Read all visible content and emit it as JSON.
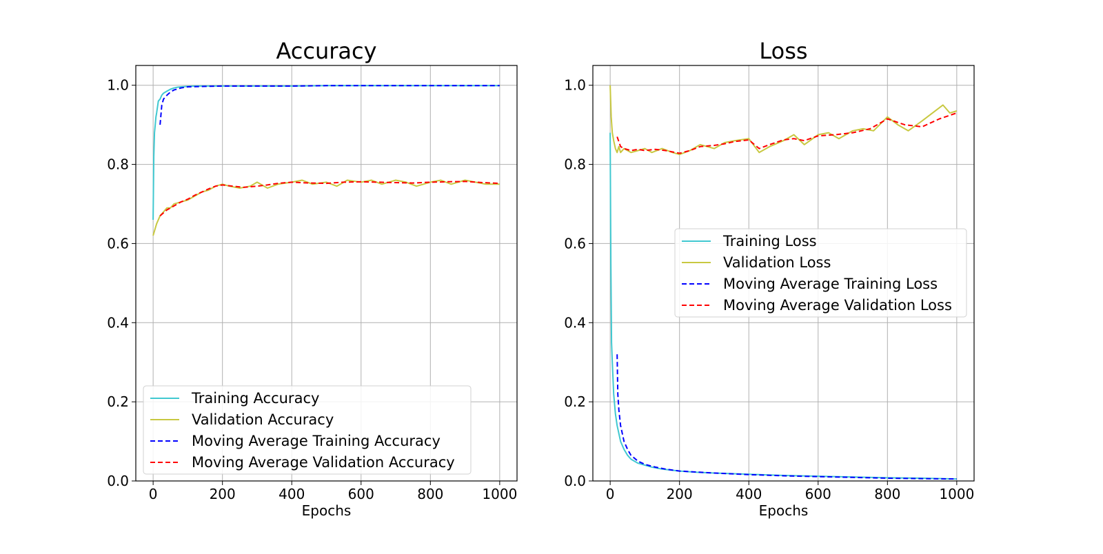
{
  "colors": {
    "training": "#40C8D0",
    "validation": "#C8C840",
    "ma_training": "#0000FF",
    "ma_validation": "#FF0000",
    "grid": "#B0B0B0",
    "legend_border": "#D0D0D0"
  },
  "chart_data": [
    {
      "type": "line",
      "title": "Accuracy",
      "xlabel": "Epochs",
      "ylabel": "",
      "xlim": [
        -50,
        1050
      ],
      "ylim": [
        0.0,
        1.05
      ],
      "xticks": [
        0,
        200,
        400,
        600,
        800,
        1000
      ],
      "xtick_labels": [
        "0",
        "200",
        "400",
        "600",
        "800",
        "1000"
      ],
      "yticks": [
        0.0,
        0.2,
        0.4,
        0.6,
        0.8,
        1.0
      ],
      "ytick_labels": [
        "0.0",
        "0.2",
        "0.4",
        "0.6",
        "0.8",
        "1.0"
      ],
      "grid": true,
      "legend_position": "lower-left",
      "series": [
        {
          "name": "Training Accuracy",
          "style": "solid",
          "color_key": "training",
          "x": [
            0,
            2,
            4,
            6,
            8,
            10,
            15,
            20,
            25,
            30,
            40,
            50,
            60,
            70,
            80,
            100,
            120,
            150,
            180,
            200,
            250,
            300,
            400,
            500,
            600,
            700,
            800,
            900,
            1000
          ],
          "values": [
            0.66,
            0.82,
            0.88,
            0.9,
            0.92,
            0.93,
            0.96,
            0.965,
            0.975,
            0.98,
            0.985,
            0.99,
            0.993,
            0.995,
            0.996,
            0.997,
            0.998,
            0.998,
            0.998,
            0.998,
            0.998,
            0.998,
            0.998,
            0.999,
            0.999,
            0.999,
            0.999,
            0.999,
            0.999
          ]
        },
        {
          "name": "Validation Accuracy",
          "style": "solid",
          "color_key": "validation",
          "x": [
            0,
            10,
            20,
            30,
            40,
            50,
            60,
            80,
            100,
            120,
            140,
            160,
            180,
            200,
            220,
            250,
            280,
            300,
            330,
            360,
            400,
            430,
            460,
            500,
            530,
            560,
            600,
            630,
            660,
            700,
            730,
            760,
            800,
            830,
            860,
            900,
            930,
            960,
            1000
          ],
          "values": [
            0.62,
            0.65,
            0.67,
            0.68,
            0.69,
            0.69,
            0.7,
            0.705,
            0.71,
            0.72,
            0.73,
            0.735,
            0.745,
            0.75,
            0.745,
            0.74,
            0.745,
            0.755,
            0.74,
            0.75,
            0.755,
            0.76,
            0.75,
            0.755,
            0.745,
            0.76,
            0.755,
            0.76,
            0.75,
            0.76,
            0.755,
            0.745,
            0.755,
            0.76,
            0.75,
            0.76,
            0.755,
            0.75,
            0.75
          ]
        },
        {
          "name": "Moving Average Training Accuracy",
          "style": "dashed",
          "color_key": "ma_training",
          "x": [
            20,
            25,
            30,
            40,
            50,
            60,
            80,
            100,
            150,
            200,
            300,
            400,
            500,
            600,
            700,
            800,
            900,
            1000
          ],
          "values": [
            0.9,
            0.95,
            0.965,
            0.975,
            0.983,
            0.988,
            0.993,
            0.996,
            0.997,
            0.998,
            0.998,
            0.998,
            0.999,
            0.999,
            0.999,
            0.999,
            0.999,
            0.999
          ]
        },
        {
          "name": "Moving Average Validation Accuracy",
          "style": "dashed",
          "color_key": "ma_validation",
          "x": [
            20,
            40,
            60,
            80,
            100,
            120,
            140,
            160,
            180,
            200,
            230,
            260,
            300,
            330,
            360,
            400,
            450,
            500,
            550,
            600,
            650,
            700,
            750,
            800,
            850,
            900,
            950,
            1000
          ],
          "values": [
            0.67,
            0.685,
            0.695,
            0.705,
            0.712,
            0.722,
            0.73,
            0.738,
            0.745,
            0.748,
            0.745,
            0.742,
            0.745,
            0.748,
            0.752,
            0.755,
            0.753,
            0.752,
            0.755,
            0.756,
            0.755,
            0.754,
            0.753,
            0.755,
            0.756,
            0.757,
            0.754,
            0.752
          ]
        }
      ]
    },
    {
      "type": "line",
      "title": "Loss",
      "xlabel": "Epochs",
      "ylabel": "",
      "xlim": [
        -50,
        1050
      ],
      "ylim": [
        0.0,
        1.05
      ],
      "xticks": [
        0,
        200,
        400,
        600,
        800,
        1000
      ],
      "xtick_labels": [
        "0",
        "200",
        "400",
        "600",
        "800",
        "1000"
      ],
      "yticks": [
        0.0,
        0.2,
        0.4,
        0.6,
        0.8,
        1.0
      ],
      "ytick_labels": [
        "0.0",
        "0.2",
        "0.4",
        "0.6",
        "0.8",
        "1.0"
      ],
      "grid": true,
      "legend_position": "center-right",
      "series": [
        {
          "name": "Training Loss",
          "style": "solid",
          "color_key": "training",
          "x": [
            0,
            2,
            4,
            6,
            8,
            10,
            12,
            15,
            20,
            25,
            30,
            40,
            50,
            60,
            80,
            100,
            120,
            150,
            200,
            250,
            300,
            400,
            500,
            600,
            700,
            800,
            900,
            1000
          ],
          "values": [
            0.88,
            0.55,
            0.35,
            0.3,
            0.26,
            0.22,
            0.2,
            0.17,
            0.14,
            0.12,
            0.1,
            0.08,
            0.065,
            0.055,
            0.045,
            0.04,
            0.035,
            0.03,
            0.025,
            0.022,
            0.02,
            0.017,
            0.014,
            0.012,
            0.01,
            0.008,
            0.007,
            0.005
          ]
        },
        {
          "name": "Validation Loss",
          "style": "solid",
          "color_key": "validation",
          "x": [
            0,
            3,
            6,
            10,
            15,
            20,
            25,
            30,
            40,
            50,
            60,
            80,
            100,
            120,
            150,
            180,
            200,
            230,
            260,
            300,
            330,
            360,
            400,
            430,
            460,
            500,
            530,
            560,
            600,
            630,
            660,
            700,
            730,
            760,
            800,
            830,
            860,
            900,
            930,
            960,
            980,
            1000
          ],
          "values": [
            1.0,
            0.92,
            0.88,
            0.86,
            0.84,
            0.83,
            0.845,
            0.83,
            0.84,
            0.835,
            0.83,
            0.835,
            0.84,
            0.83,
            0.84,
            0.83,
            0.825,
            0.835,
            0.85,
            0.84,
            0.855,
            0.86,
            0.865,
            0.83,
            0.845,
            0.86,
            0.875,
            0.85,
            0.875,
            0.88,
            0.865,
            0.885,
            0.89,
            0.885,
            0.92,
            0.9,
            0.885,
            0.91,
            0.93,
            0.95,
            0.93,
            0.935
          ]
        },
        {
          "name": "Moving Average Training Loss",
          "style": "dashed",
          "color_key": "ma_training",
          "x": [
            20,
            22,
            25,
            30,
            35,
            40,
            50,
            60,
            80,
            100,
            130,
            160,
            200,
            300,
            400,
            500,
            600,
            700,
            800,
            900,
            1000
          ],
          "values": [
            0.32,
            0.22,
            0.18,
            0.14,
            0.12,
            0.1,
            0.08,
            0.065,
            0.05,
            0.042,
            0.035,
            0.03,
            0.025,
            0.02,
            0.016,
            0.013,
            0.011,
            0.009,
            0.007,
            0.006,
            0.005
          ]
        },
        {
          "name": "Moving Average Validation Loss",
          "style": "dashed",
          "color_key": "ma_validation",
          "x": [
            20,
            30,
            40,
            60,
            80,
            100,
            130,
            160,
            200,
            230,
            260,
            300,
            330,
            360,
            400,
            430,
            460,
            500,
            530,
            560,
            600,
            650,
            700,
            750,
            800,
            850,
            900,
            950,
            1000
          ],
          "values": [
            0.87,
            0.845,
            0.84,
            0.835,
            0.838,
            0.835,
            0.838,
            0.835,
            0.828,
            0.835,
            0.845,
            0.848,
            0.852,
            0.858,
            0.862,
            0.84,
            0.85,
            0.862,
            0.865,
            0.86,
            0.872,
            0.875,
            0.88,
            0.89,
            0.915,
            0.9,
            0.895,
            0.915,
            0.93
          ]
        }
      ]
    }
  ]
}
